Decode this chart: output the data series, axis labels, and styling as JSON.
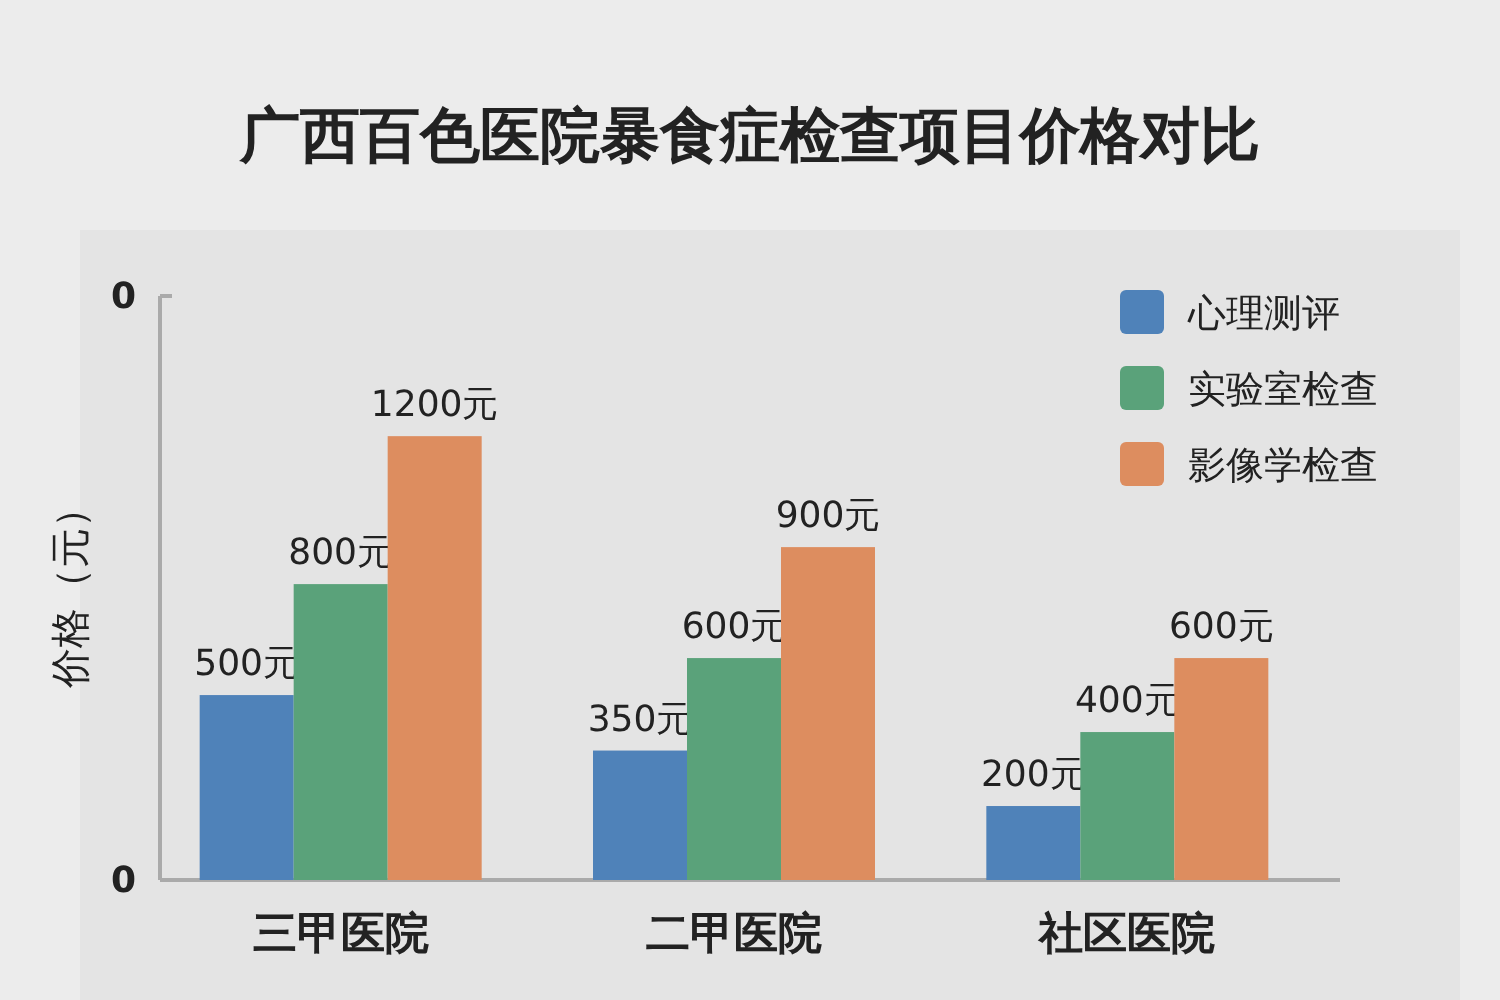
{
  "chart_data": {
    "type": "bar",
    "title": "广西百色医院暴食症检查项目价格对比",
    "ylabel": "价格（元）",
    "categories": [
      "三甲医院",
      "二甲医院",
      "社区医院"
    ],
    "series": [
      {
        "name": "心理测评",
        "color": "#4f82b9",
        "values": [
          500,
          350,
          200
        ],
        "value_labels": [
          "500元",
          "350元",
          "200元"
        ]
      },
      {
        "name": "实验室检查",
        "color": "#5aa27a",
        "values": [
          800,
          600,
          400
        ],
        "value_labels": [
          "800元",
          "600元",
          "400元"
        ]
      },
      {
        "name": "影像学检查",
        "color": "#dd8d5f",
        "values": [
          1200,
          900,
          600
        ],
        "value_labels": [
          "1200元",
          "900元",
          "600元"
        ]
      }
    ],
    "annotations": [
      "0",
      "0"
    ],
    "legend": "top right"
  }
}
